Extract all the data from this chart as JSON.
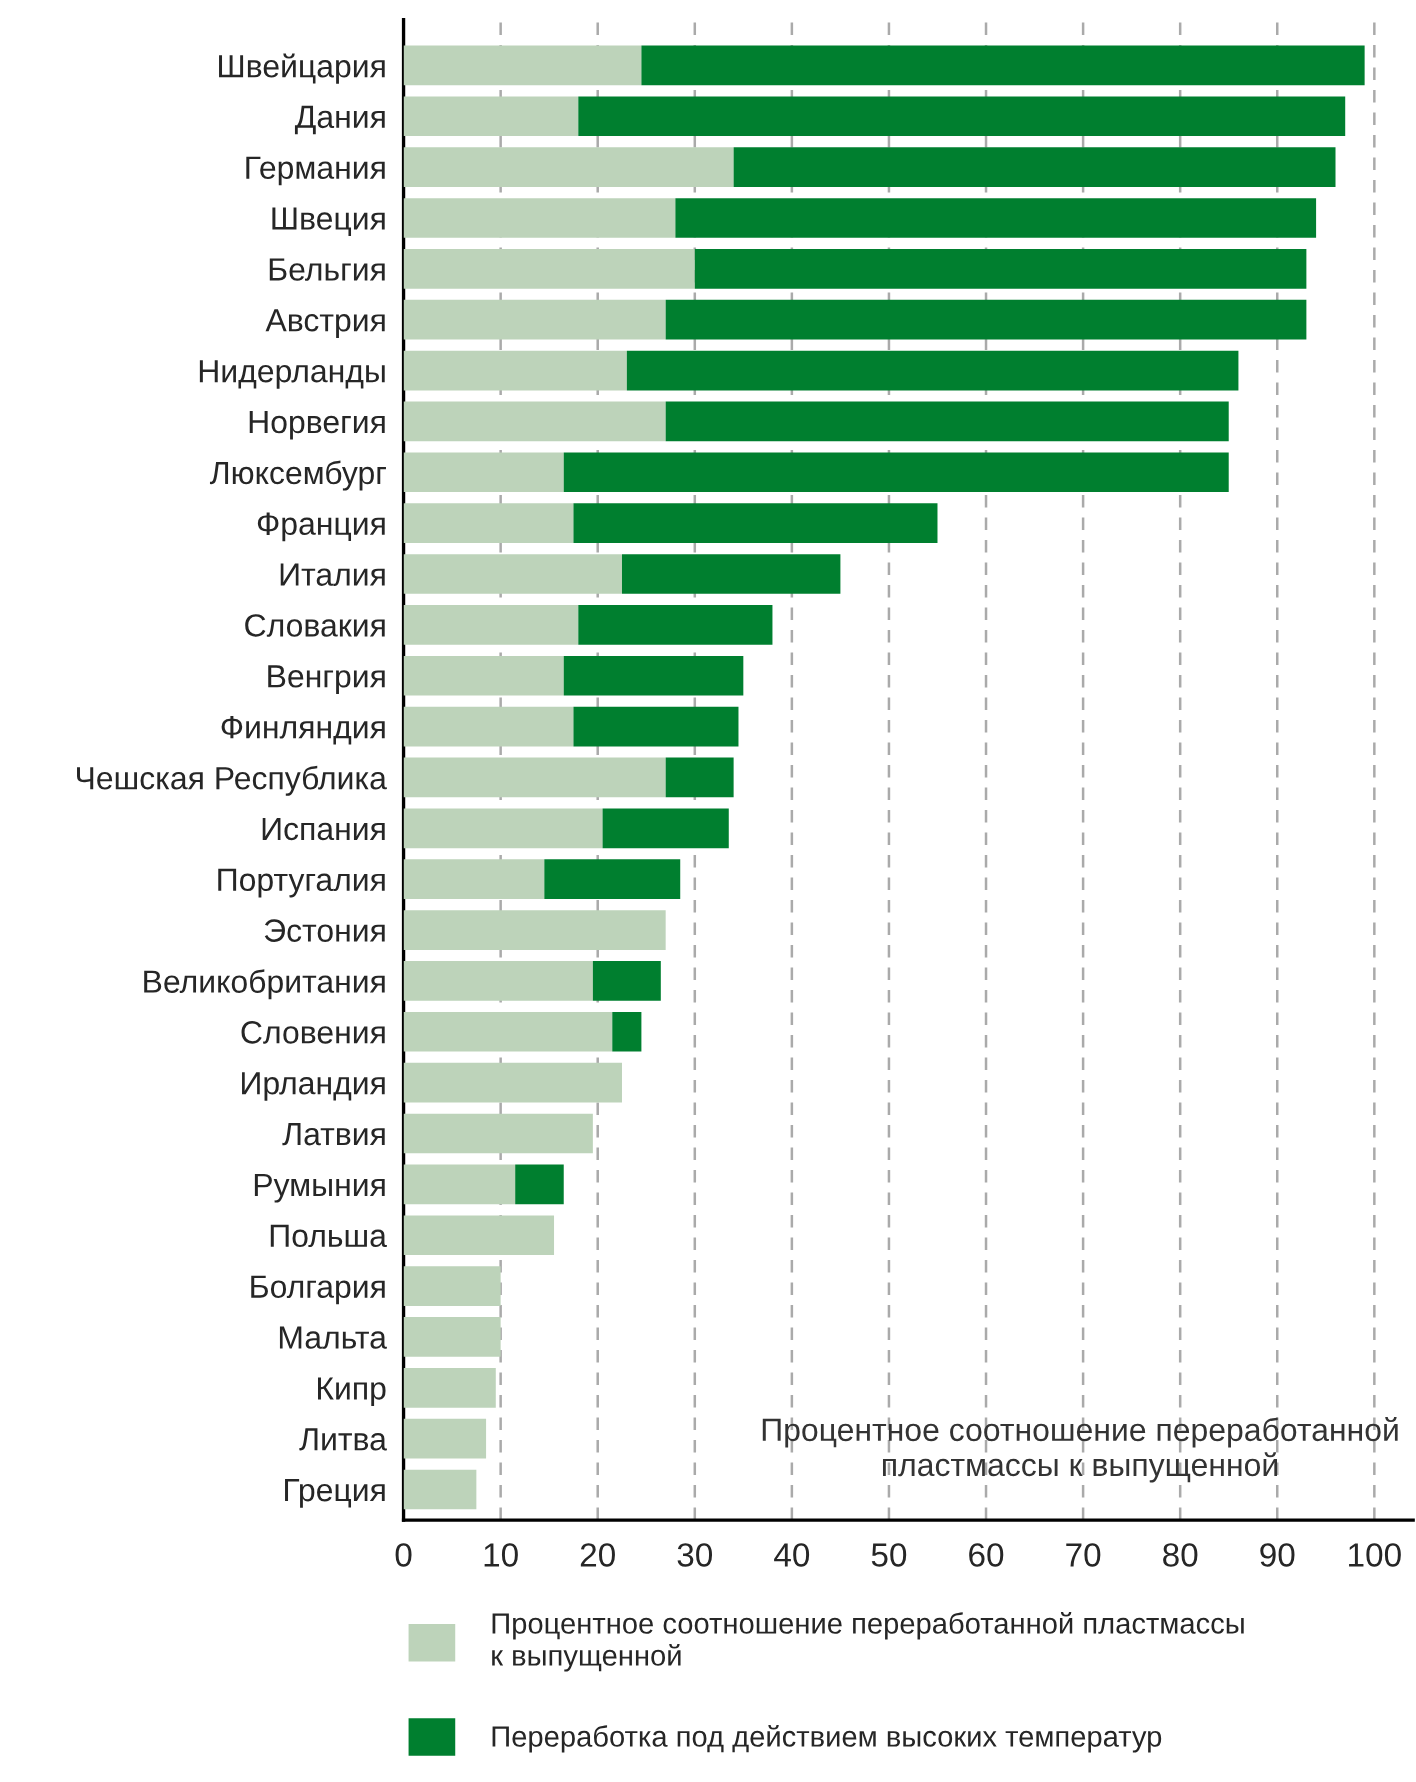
{
  "chart_data": {
    "type": "bar",
    "orientation": "horizontal",
    "stacked": true,
    "categories": [
      "Швейцария",
      "Дания",
      "Германия",
      "Швеция",
      "Бельгия",
      "Австрия",
      "Нидерланды",
      "Норвегия",
      "Люксембург",
      "Франция",
      "Италия",
      "Словакия",
      "Венгрия",
      "Финляндия",
      "Чешская Республика",
      "Испания",
      "Португалия",
      "Эстония",
      "Великобритания",
      "Словения",
      "Ирландия",
      "Латвия",
      "Румыния",
      "Польша",
      "Болгария",
      "Мальта",
      "Кипр",
      "Литва",
      "Греция"
    ],
    "series": [
      {
        "name": "Процентное соотношение переработанной пластмассы\nк выпущенной",
        "color": "#bdd3ba",
        "values": [
          24.5,
          18,
          34,
          28,
          30,
          27,
          23,
          27,
          16.5,
          17.5,
          22.5,
          18,
          16.5,
          17.5,
          27,
          20.5,
          14.5,
          27,
          19.5,
          21.5,
          22.5,
          19.5,
          11.5,
          15.5,
          10,
          10,
          9.5,
          8.5,
          7.5
        ]
      },
      {
        "name": "Переработка под действием высоких температур",
        "color": "#007f2f",
        "values": [
          74.5,
          79,
          62,
          66,
          63,
          66,
          63,
          58,
          68.5,
          37.5,
          22.5,
          20,
          18.5,
          17,
          7,
          13,
          14,
          null,
          7,
          3,
          null,
          null,
          5,
          null,
          null,
          null,
          null,
          null,
          null
        ]
      }
    ],
    "xlim": [
      0,
      104
    ],
    "xticks": [
      0,
      10,
      20,
      30,
      40,
      50,
      60,
      70,
      80,
      90,
      100
    ],
    "grid": "x",
    "legend": "bottom",
    "annotations": [
      "Процентное соотношение переработанной\nпластмассы к выпущенной"
    ]
  }
}
